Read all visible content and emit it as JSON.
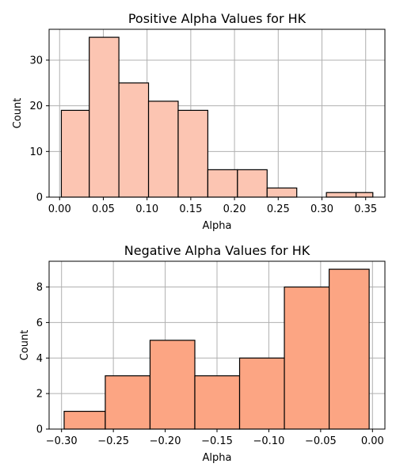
{
  "chart_data": [
    {
      "type": "bar",
      "title": "Positive Alpha Values for HK",
      "xlabel": "Alpha",
      "ylabel": "Count",
      "bar_color": "#fcc5b2",
      "edge_color": "#000000",
      "bin_edges": [
        0.002,
        0.0339,
        0.0678,
        0.1017,
        0.1356,
        0.1695,
        0.2034,
        0.2373,
        0.2712,
        0.3051,
        0.339,
        0.3582
      ],
      "values": [
        19,
        35,
        25,
        21,
        19,
        6,
        6,
        2,
        0,
        1,
        1
      ],
      "xlim": [
        -0.012,
        0.372
      ],
      "ylim": [
        0,
        36.75
      ],
      "xticks": [
        0.0,
        0.05,
        0.1,
        0.15,
        0.2,
        0.25,
        0.3,
        0.35
      ],
      "xtick_labels": [
        "0.00",
        "0.05",
        "0.10",
        "0.15",
        "0.20",
        "0.25",
        "0.30",
        "0.35"
      ],
      "yticks": [
        0,
        10,
        20,
        30
      ],
      "ytick_labels": [
        "0",
        "10",
        "20",
        "30"
      ],
      "grid": true
    },
    {
      "type": "bar",
      "title": "Negative Alpha Values for HK",
      "xlabel": "Alpha",
      "ylabel": "Count",
      "bar_color": "#fca583",
      "edge_color": "#000000",
      "bin_edges": [
        -0.2975,
        -0.2578,
        -0.2146,
        -0.1714,
        -0.1282,
        -0.085,
        -0.0418,
        -0.0032
      ],
      "values": [
        1,
        3,
        5,
        3,
        4,
        8,
        9
      ],
      "xlim": [
        -0.312,
        0.012
      ],
      "ylim": [
        0,
        9.45
      ],
      "xticks": [
        -0.3,
        -0.25,
        -0.2,
        -0.15,
        -0.1,
        -0.05,
        0.0
      ],
      "xtick_labels": [
        "−0.30",
        "−0.25",
        "−0.20",
        "−0.15",
        "−0.10",
        "−0.05",
        "0.00"
      ],
      "yticks": [
        0,
        2,
        4,
        6,
        8
      ],
      "ytick_labels": [
        "0",
        "2",
        "4",
        "6",
        "8"
      ],
      "grid": true
    }
  ]
}
